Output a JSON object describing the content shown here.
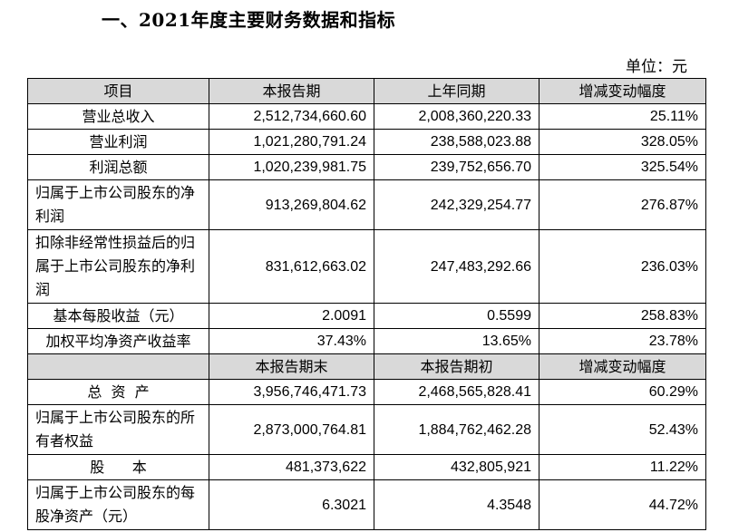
{
  "title": "一、2021年度主要财务数据和指标",
  "unit": "单位：元",
  "header1": [
    "项目",
    "本报告期",
    "上年同期",
    "增减变动幅度"
  ],
  "rows1": [
    {
      "label": "营业总收入",
      "current": "2,512,734,660.60",
      "previous": "2,008,360,220.33",
      "change": "25.11%"
    },
    {
      "label": "营业利润",
      "current": "1,021,280,791.24",
      "previous": "238,588,023.88",
      "change": "328.05%"
    },
    {
      "label": "利润总额",
      "current": "1,020,239,981.75",
      "previous": "239,752,656.70",
      "change": "325.54%"
    },
    {
      "label": "归属于上市公司股东的净利润",
      "current": "913,269,804.62",
      "previous": "242,329,254.77",
      "change": "276.87%"
    },
    {
      "label": "扣除非经常性损益后的归属于上市公司股东的净利润",
      "current": "831,612,663.02",
      "previous": "247,483,292.66",
      "change": "236.03%"
    },
    {
      "label": "基本每股收益（元）",
      "current": "2.0091",
      "previous": "0.5599",
      "change": "258.83%"
    },
    {
      "label": "加权平均净资产收益率",
      "current": "37.43%",
      "previous": "13.65%",
      "change": "23.78%"
    }
  ],
  "header2": [
    "",
    "本报告期末",
    "本报告期初",
    "增减变动幅度"
  ],
  "rows2": [
    {
      "label": "总  资  产",
      "current": "3,956,746,471.73",
      "previous": "2,468,565,828.41",
      "change": "60.29%"
    },
    {
      "label": "归属于上市公司股东的所有者权益",
      "current": "2,873,000,764.81",
      "previous": "1,884,762,462.28",
      "change": "52.43%"
    },
    {
      "label": "股      本",
      "current": "481,373,622",
      "previous": "432,805,921",
      "change": "11.22%"
    },
    {
      "label": "归属于上市公司股东的每股净资产（元）",
      "current": "6.3021",
      "previous": "4.3548",
      "change": "44.72%"
    }
  ]
}
